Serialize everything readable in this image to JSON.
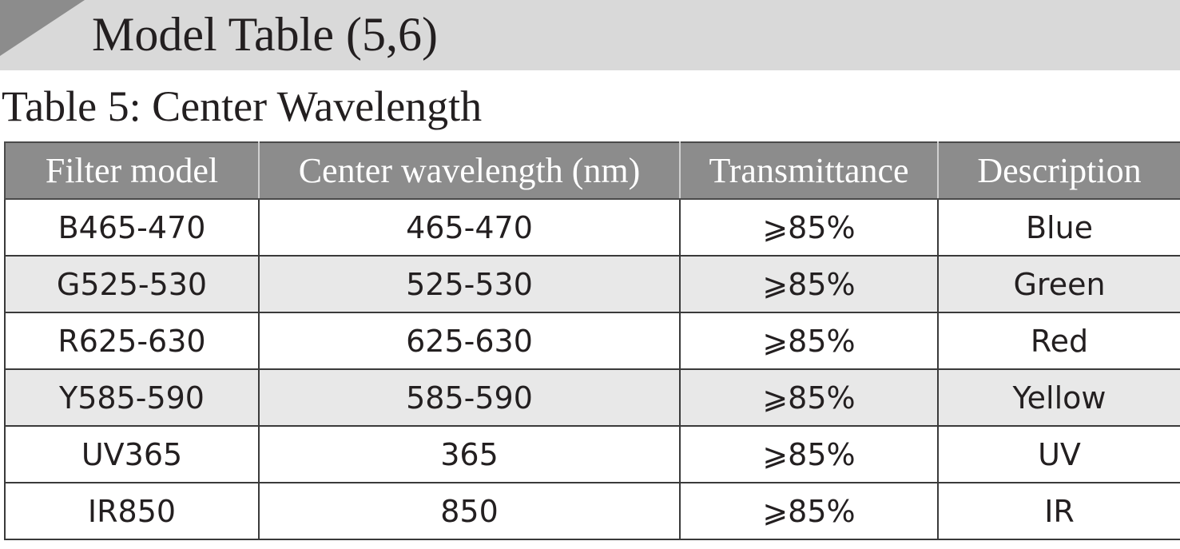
{
  "header": {
    "title": "Model Table (5,6)",
    "accent_color": "#d9d9d9",
    "wedge_color": "#8c8c8c"
  },
  "section": {
    "title": "Table 5: Center Wavelength"
  },
  "table": {
    "header_color": "#8c8c8c",
    "stripe_color": "#e8e8e8",
    "columns": [
      "Filter model",
      "Center wavelength (nm)",
      "Transmittance",
      "Description"
    ],
    "rows": [
      {
        "model": "B465-470",
        "wavelength": "465-470",
        "transmittance": "⩾85%",
        "description": "Blue"
      },
      {
        "model": "G525-530",
        "wavelength": "525-530",
        "transmittance": "⩾85%",
        "description": "Green"
      },
      {
        "model": "R625-630",
        "wavelength": "625-630",
        "transmittance": "⩾85%",
        "description": "Red"
      },
      {
        "model": "Y585-590",
        "wavelength": "585-590",
        "transmittance": "⩾85%",
        "description": "Yellow"
      },
      {
        "model": "UV365",
        "wavelength": "365",
        "transmittance": "⩾85%",
        "description": "UV"
      },
      {
        "model": "IR850",
        "wavelength": "850",
        "transmittance": "⩾85%",
        "description": "IR"
      }
    ]
  }
}
